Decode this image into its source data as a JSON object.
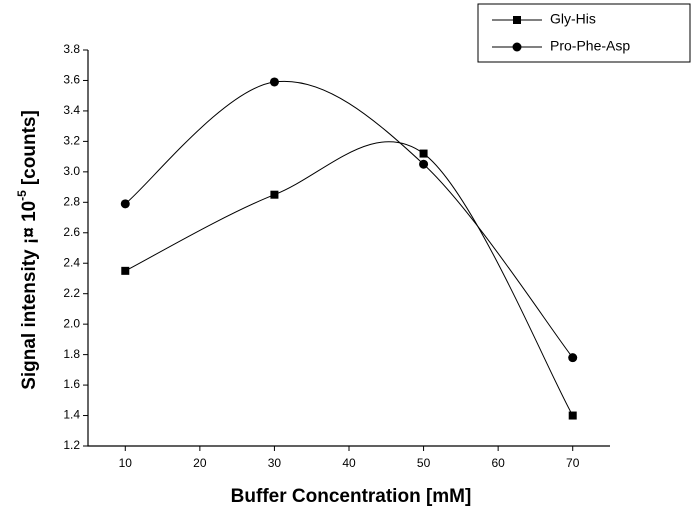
{
  "chart_data": {
    "type": "line",
    "xlabel": "Buffer Concentration [mM]",
    "ylabel": "Signal intensity ¡¤ 10",
    "ylabel_exponent": "-5",
    "ylabel_unit": "[counts]",
    "x": [
      10,
      30,
      50,
      70
    ],
    "xlim": [
      5,
      75
    ],
    "xticks": [
      10,
      20,
      30,
      40,
      50,
      60,
      70
    ],
    "ylim": [
      1.2,
      3.8
    ],
    "yticks": [
      1.2,
      1.4,
      1.6,
      1.8,
      {
        "value": 2.0,
        "label": "2.0"
      },
      2.2,
      2.4,
      2.6,
      2.8,
      {
        "value": 3.0,
        "label": "3.0"
      },
      3.2,
      3.4,
      3.6,
      3.8
    ],
    "legend": "top-right",
    "series": [
      {
        "name": "Gly-His",
        "color": "#000000",
        "marker": "square",
        "values": [
          2.35,
          2.85,
          3.12,
          1.4
        ]
      },
      {
        "name": "Pro-Phe-Asp",
        "color": "#000000",
        "marker": "circle",
        "values": [
          2.79,
          3.59,
          3.05,
          1.78
        ]
      }
    ]
  }
}
